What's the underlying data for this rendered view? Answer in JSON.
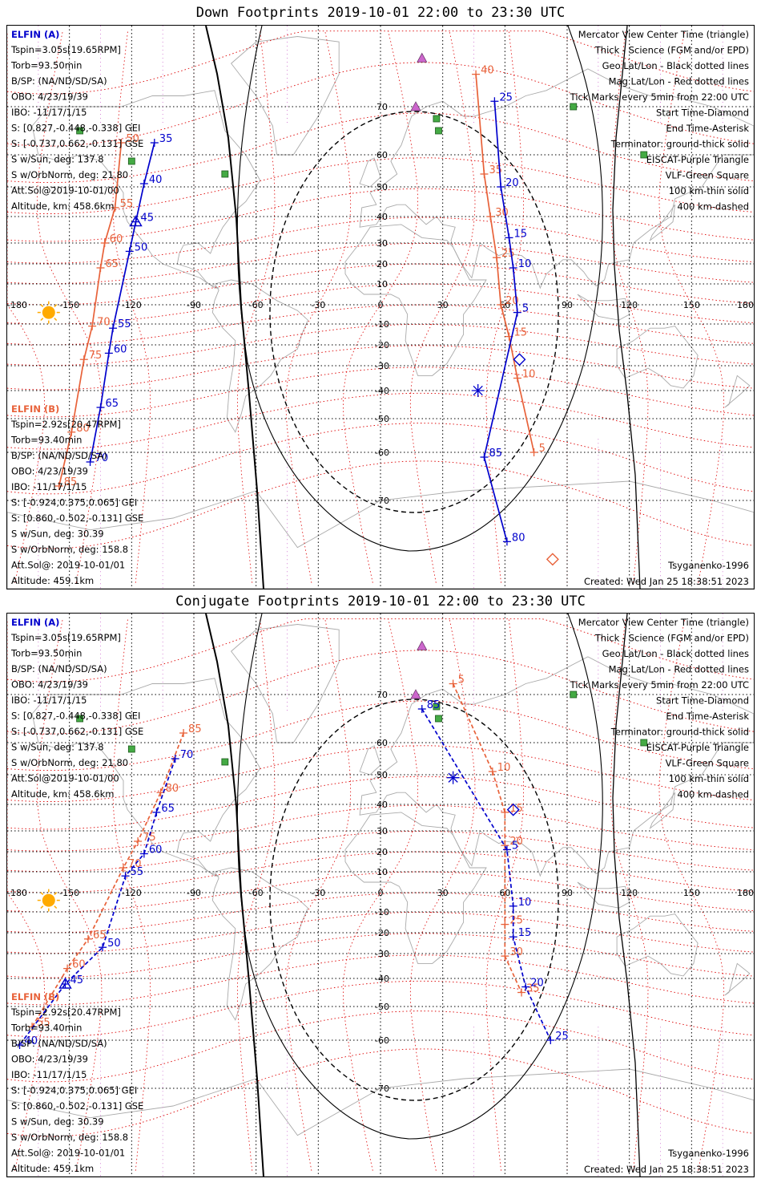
{
  "top_title": "Down Footprints 2019-10-01 22:00 to 23:30 UTC",
  "bottom_title": "Conjugate Footprints 2019-10-01 22:00 to 23:30 UTC",
  "colors": {
    "elfin_a": "#0000cc",
    "elfin_b": "#e8623a",
    "mag_grid": "#dd0000",
    "geo_grid": "#000000",
    "meridian_guides": "#cc66cc",
    "eiscat": "#cc66cc",
    "vlf": "#44aa44",
    "sun": "#ffaa00",
    "land": "#aaaaaa"
  },
  "icons": {
    "sun": "sun-icon",
    "eiscat": "purple-triangle-icon",
    "vlf": "green-square-icon",
    "start": "diamond-icon",
    "end": "asterisk-icon",
    "center": "triangle-icon"
  },
  "spacecraft_a": {
    "label": "ELFIN (A)",
    "lines": [
      "Tspin=3.05s[19.65RPM]",
      "Torb=93.50min",
      "B/SP: (NA/ND/SD/SA)",
      "OBO: 4/23/19/39",
      "IBO: -11/17/1/15",
      "S: [0.827,-0.448,-0.338] GEI",
      "S: [-0.737,0.662,-0.131] GSE",
      "S w/Sun, deg: 137.8",
      "S w/OrbNorm, deg: 21.80",
      "Att.Sol@2019-10-01/00",
      "Altitude, km: 458.6km"
    ]
  },
  "spacecraft_b": {
    "label": "ELFIN (B)",
    "lines": [
      "Tspin=2.92s[20.47RPM]",
      "Torb=93.40min",
      "B/SP: (NA/ND/SD/SA)",
      "OBO: 4/23/19/39",
      "IBO: -11/17/1/15",
      "S: [-0.924,0.375,0.065] GEI",
      "S: [0.860,-0.502,-0.131] GSE",
      "S w/Sun, deg: 30.39",
      "S w/OrbNorm, deg: 158.8",
      "Att.Sol@: 2019-10-01/01",
      "Altitude: 459.1km"
    ]
  },
  "legend": [
    {
      "text": "Mercator View Center Time (triangle)",
      "color": "#000000"
    },
    {
      "text": "Thick - Science (FGM and/or EPD)",
      "color": "#000000"
    },
    {
      "text": "Geo Lat/Lon - Black dotted lines",
      "color": "#000000"
    },
    {
      "text": "Mag Lat/Lon - Red dotted lines",
      "color": "#dd0000"
    },
    {
      "text": "Tick Marks every 5min from 22:00 UTC",
      "color": "#000000"
    },
    {
      "text": "Start Time-Diamond",
      "color": "#000000"
    },
    {
      "text": "End Time-Asterisk",
      "color": "#000000"
    },
    {
      "text": "Terminator: ground-thick solid",
      "color": "#000000"
    },
    {
      "text": "EISCAT-Purple Triangle",
      "color": "#cc66cc"
    },
    {
      "text": "VLF-Green Square",
      "color": "#44aa44"
    },
    {
      "text": "100 km-thin solid",
      "color": "#000000"
    },
    {
      "text": "400 km-dashed",
      "color": "#000000"
    }
  ],
  "model": "Tsyganenko-1996",
  "created": "Created: Wed Jan 25 18:38:51 2023",
  "map": {
    "lon_labels": [
      "-180",
      "-150",
      "-120",
      "-90",
      "-60",
      "-30",
      "0",
      "30",
      "60",
      "90",
      "120",
      "150",
      "180"
    ],
    "lat_labels": [
      "70",
      "60",
      "50",
      "40",
      "30",
      "20",
      "10",
      "0",
      "-10",
      "-20",
      "-30",
      "-40",
      "-50",
      "-60",
      "-70"
    ]
  },
  "down": {
    "a_ticks": [
      {
        "lon": -109,
        "lat": 62.5,
        "label": "35"
      },
      {
        "lon": -114,
        "lat": 51,
        "label": "40"
      },
      {
        "lon": -118,
        "lat": 38,
        "label": "45"
      },
      {
        "lon": -121,
        "lat": 26,
        "label": "50"
      },
      {
        "lon": -129,
        "lat": -12,
        "label": "55"
      },
      {
        "lon": -131,
        "lat": -24,
        "label": "60"
      },
      {
        "lon": -135,
        "lat": -46,
        "label": "65"
      },
      {
        "lon": -140,
        "lat": -62,
        "label": "70"
      },
      {
        "lon": 55,
        "lat": 71,
        "label": "25"
      },
      {
        "lon": 58,
        "lat": 50,
        "label": "20"
      },
      {
        "lon": 62,
        "lat": 32,
        "label": "15"
      },
      {
        "lon": 64,
        "lat": 18,
        "label": "10"
      },
      {
        "lon": 66,
        "lat": -4,
        "label": "5"
      },
      {
        "lon": 50,
        "lat": -61,
        "label": "85"
      },
      {
        "lon": 61,
        "lat": -77,
        "label": "80"
      }
    ],
    "b_ticks": [
      {
        "lon": -125,
        "lat": 62.5,
        "label": "50"
      },
      {
        "lon": -128,
        "lat": 43,
        "label": "55"
      },
      {
        "lon": -133,
        "lat": 30,
        "label": "60"
      },
      {
        "lon": -135,
        "lat": 18,
        "label": "65"
      },
      {
        "lon": -139,
        "lat": -11,
        "label": "70"
      },
      {
        "lon": -143,
        "lat": -27,
        "label": "75"
      },
      {
        "lon": -149,
        "lat": -54,
        "label": "80"
      },
      {
        "lon": -155,
        "lat": -67,
        "label": "85"
      },
      {
        "lon": 46,
        "lat": 76,
        "label": "40"
      },
      {
        "lon": 50,
        "lat": 54,
        "label": "35"
      },
      {
        "lon": 53,
        "lat": 40,
        "label": "30"
      },
      {
        "lon": 56,
        "lat": 23,
        "label": "25"
      },
      {
        "lon": 58,
        "lat": 0,
        "label": "20"
      },
      {
        "lon": 62,
        "lat": -16,
        "label": "15"
      },
      {
        "lon": 66,
        "lat": -35,
        "label": "10"
      },
      {
        "lon": 74,
        "lat": -60,
        "label": "5"
      }
    ]
  },
  "conj": {
    "a_ticks": [
      {
        "lon": 20,
        "lat": 67,
        "label": "85"
      },
      {
        "lon": 61,
        "lat": 21,
        "label": "5"
      },
      {
        "lon": 64,
        "lat": -7,
        "label": "10"
      },
      {
        "lon": 64,
        "lat": -22,
        "label": "15"
      },
      {
        "lon": 70,
        "lat": -43,
        "label": "20"
      },
      {
        "lon": 82,
        "lat": -60,
        "label": "25"
      },
      {
        "lon": -99,
        "lat": 55,
        "label": "70"
      },
      {
        "lon": -108,
        "lat": 37,
        "label": "65"
      },
      {
        "lon": -114,
        "lat": 19,
        "label": "60"
      },
      {
        "lon": -123,
        "lat": 8,
        "label": "55"
      },
      {
        "lon": -134,
        "lat": -27,
        "label": "50"
      },
      {
        "lon": -152,
        "lat": -42,
        "label": "45"
      },
      {
        "lon": -174,
        "lat": -61,
        "label": "40"
      }
    ],
    "b_ticks": [
      {
        "lon": 35,
        "lat": 72,
        "label": "5"
      },
      {
        "lon": 54,
        "lat": 51,
        "label": "10"
      },
      {
        "lon": 60,
        "lat": 37,
        "label": "15"
      },
      {
        "lon": 60,
        "lat": 23,
        "label": "20"
      },
      {
        "lon": 60,
        "lat": -16,
        "label": "25"
      },
      {
        "lon": 60,
        "lat": -31,
        "label": "30"
      },
      {
        "lon": 68,
        "lat": -45,
        "label": "35"
      },
      {
        "lon": -95,
        "lat": 62,
        "label": "85"
      },
      {
        "lon": -106,
        "lat": 44,
        "label": "80"
      },
      {
        "lon": -117,
        "lat": 25,
        "label": "75"
      },
      {
        "lon": -124,
        "lat": 12,
        "label": "70"
      },
      {
        "lon": -141,
        "lat": -23,
        "label": "65"
      },
      {
        "lon": -151,
        "lat": -36,
        "label": "60"
      },
      {
        "lon": -168,
        "lat": -56,
        "label": "55"
      }
    ]
  }
}
